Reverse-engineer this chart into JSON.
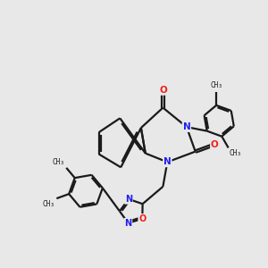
{
  "background_color": "#e8e8e8",
  "bond_color": "#1a1a1a",
  "N_color": "#2020ee",
  "O_color": "#ee2020",
  "bond_width": 1.6,
  "dbo": 0.06,
  "figsize": [
    3.0,
    3.0
  ],
  "dpi": 100,
  "xlim": [
    0,
    10
  ],
  "ylim": [
    0,
    10
  ]
}
